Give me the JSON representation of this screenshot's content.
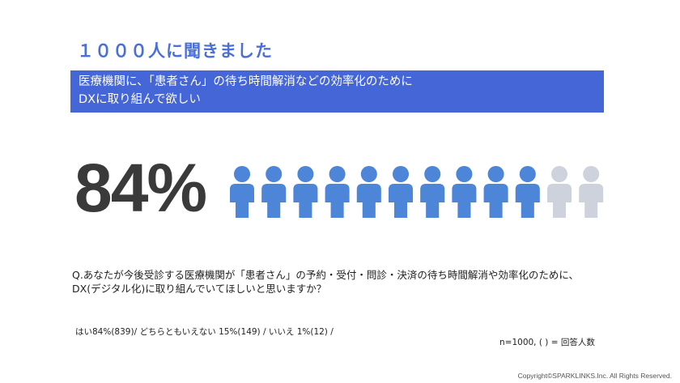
{
  "title": "１０００人に聞きました",
  "banner": {
    "line1": "医療機関に、「患者さん」の待ち時間解消などの効率化のために",
    "line2": "DXに取り組んで欲しい"
  },
  "big_percent": "84%",
  "pictogram": {
    "total_figures": 12,
    "filled_fraction": 0.84,
    "filled_color": "#4d86d8",
    "empty_color": "#cdd2dc"
  },
  "question": {
    "line1": "Q.あなたが今後受診する医療機関が「患者さん」の予約・受付・問診・決済の待ち時間解消や効率化のために、",
    "line2": "DX(デジタル化)に取り組んでいてほしいと思いますか？"
  },
  "answers": "はい84%(839)/ どちらともいえない 15%(149) /  いいえ 1%(12) /",
  "sample_note": "n=1000,  (    ) = 回答人数",
  "copyright": "Copyright©SPARKLINKS.Inc. All Rights Reserved."
}
